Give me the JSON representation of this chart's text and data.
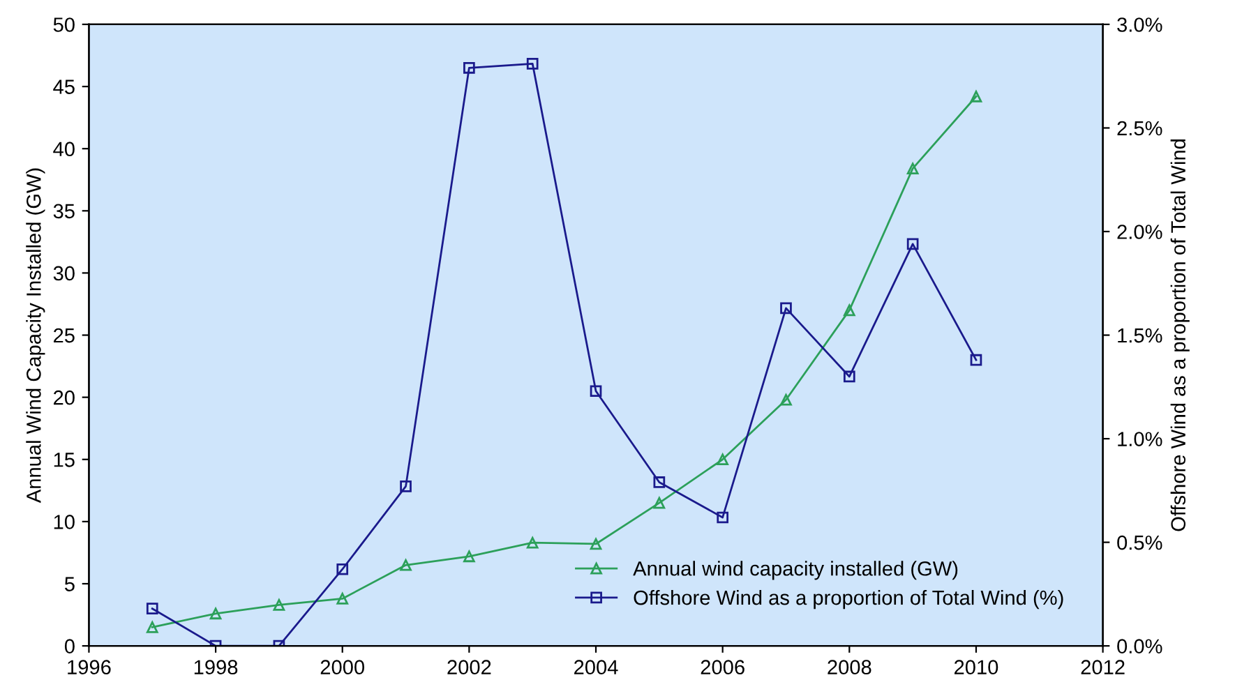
{
  "chart_data": {
    "type": "line",
    "x": [
      1997,
      1998,
      1999,
      2000,
      2001,
      2002,
      2003,
      2004,
      2005,
      2006,
      2007,
      2008,
      2009,
      2010
    ],
    "series": [
      {
        "name": "Annual wind capacity installed (GW)",
        "color": "#2ca05a",
        "marker": "triangle",
        "values": [
          1.5,
          2.6,
          3.3,
          3.8,
          6.5,
          7.2,
          8.3,
          8.2,
          11.5,
          15.0,
          19.8,
          27.0,
          38.4,
          44.2
        ]
      },
      {
        "name": "Offshore Wind as a proportion of Total Wind (%)",
        "color": "#1a1a8c",
        "marker": "square",
        "axis": "y2",
        "values": [
          0.18,
          0.0,
          0.0,
          0.37,
          0.77,
          2.79,
          2.81,
          1.23,
          0.79,
          0.62,
          1.63,
          1.3,
          1.94,
          1.38
        ]
      }
    ],
    "ylabel": "Annual Wind Capacity Installed (GW)",
    "y2label": "Offshore Wind as a proportion of Total Wind",
    "xlim": [
      1996,
      2012
    ],
    "xticks": [
      1996,
      1998,
      2000,
      2002,
      2004,
      2006,
      2008,
      2010,
      2012
    ],
    "ylim": [
      0,
      50
    ],
    "yticks": [
      0,
      5,
      10,
      15,
      20,
      25,
      30,
      35,
      40,
      45,
      50
    ],
    "y2lim": [
      0,
      3.0
    ],
    "y2ticks": [
      {
        "value": 0,
        "label": "0.0%"
      },
      {
        "value": 0.5,
        "label": "0.5%"
      },
      {
        "value": 1.0,
        "label": "1.0%"
      },
      {
        "value": 1.5,
        "label": "1.5%"
      },
      {
        "value": 2.0,
        "label": "2.0%"
      },
      {
        "value": 2.5,
        "label": "2.5%"
      },
      {
        "value": 3.0,
        "label": "3.0%"
      }
    ],
    "legend": "lower right",
    "grid": false
  }
}
